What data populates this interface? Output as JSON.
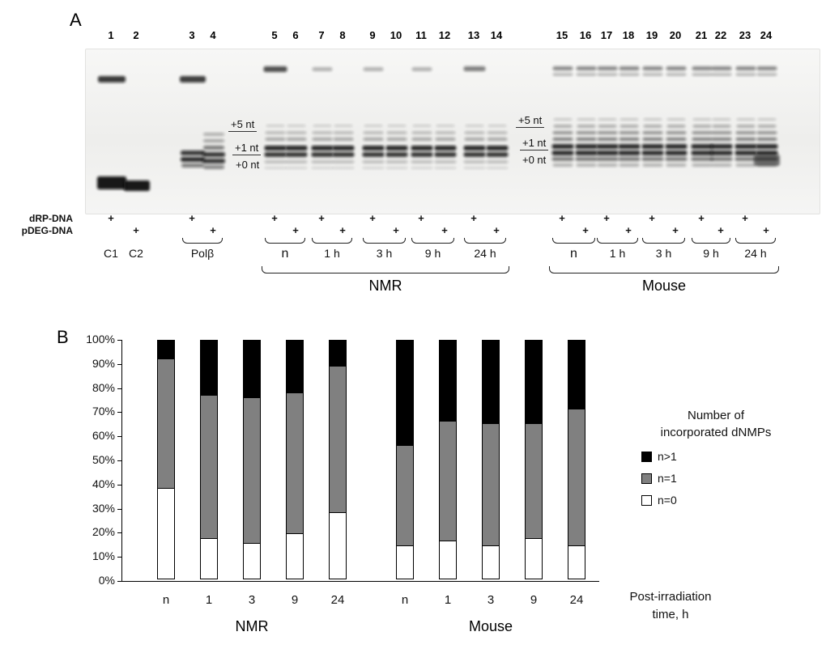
{
  "panel_a": {
    "label": "A",
    "lane_numbers": [
      "1",
      "2",
      "3",
      "4",
      "5",
      "6",
      "7",
      "8",
      "9",
      "10",
      "11",
      "12",
      "13",
      "14",
      "15",
      "16",
      "17",
      "18",
      "19",
      "20",
      "21",
      "22",
      "23",
      "24"
    ],
    "size_markers": {
      "p5": "+5 nt",
      "p1": "+1 nt",
      "p0": "+0 nt"
    },
    "row_labels": {
      "drp": "dRP-DNA",
      "pdeg": "pDEG-DNA"
    },
    "plus_mark": "+",
    "drp_plus_lanes": [
      1,
      3,
      5,
      7,
      9,
      11,
      13,
      15,
      17,
      19,
      21,
      23
    ],
    "pdeg_plus_lanes": [
      2,
      4,
      6,
      8,
      10,
      12,
      14,
      16,
      18,
      20,
      22,
      24
    ],
    "controls": {
      "c1": "C1",
      "c2": "C2",
      "polb": "Polβ"
    },
    "time_labels_nmr": [
      "n",
      "1 h",
      "3 h",
      "9 h",
      "24 h"
    ],
    "time_labels_mouse": [
      "n",
      "1 h",
      "3 h",
      "9 h",
      "24 h"
    ],
    "group_nmr": "NMR",
    "group_mouse": "Mouse"
  },
  "panel_b": {
    "label": "B",
    "legend": {
      "title_line1": "Number of",
      "title_line2": "incorporated dNMPs",
      "items": [
        {
          "label": "n>1",
          "color": "#000000"
        },
        {
          "label": "n=1",
          "color": "#808080"
        },
        {
          "label": "n=0",
          "color": "#ffffff"
        }
      ]
    },
    "x_note_line1": "Post-irradiation",
    "x_note_line2": "time, h"
  },
  "chart_data": {
    "type": "bar",
    "subtype": "stacked-100-percent",
    "title": "",
    "xlabel": "Post-irradiation time, h",
    "ylim": [
      0,
      100
    ],
    "grid": false,
    "legend_position": "right",
    "y_ticks": [
      "0%",
      "10%",
      "20%",
      "30%",
      "40%",
      "50%",
      "60%",
      "70%",
      "80%",
      "90%",
      "100%"
    ],
    "groups": [
      {
        "name": "NMR",
        "categories": [
          "n",
          "1",
          "3",
          "9",
          "24"
        ],
        "series": [
          {
            "name": "n=0",
            "values": [
              38,
              17,
              15,
              19,
              28
            ]
          },
          {
            "name": "n=1",
            "values": [
              54,
              60,
              61,
              59,
              61
            ]
          },
          {
            "name": "n>1",
            "values": [
              8,
              23,
              24,
              22,
              11
            ]
          }
        ]
      },
      {
        "name": "Mouse",
        "categories": [
          "n",
          "1",
          "3",
          "9",
          "24"
        ],
        "series": [
          {
            "name": "n=0",
            "values": [
              14,
              16,
              14,
              17,
              14
            ]
          },
          {
            "name": "n=1",
            "values": [
              42,
              50,
              51,
              48,
              57
            ]
          },
          {
            "name": "n>1",
            "values": [
              44,
              34,
              35,
              35,
              29
            ]
          }
        ]
      }
    ]
  }
}
